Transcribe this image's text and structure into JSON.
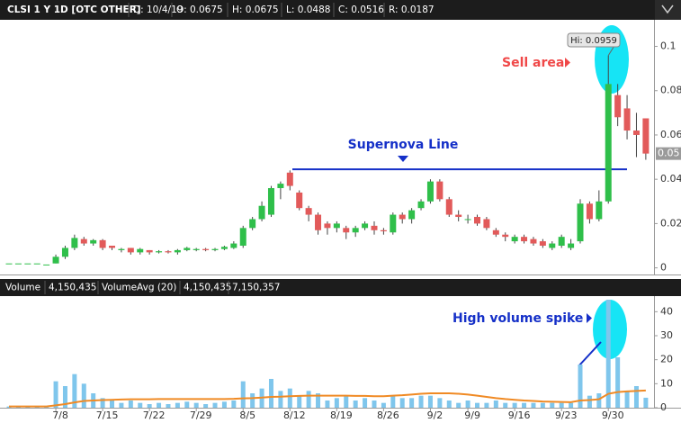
{
  "chart_data": [
    {
      "type": "candlestick",
      "header": [
        "CLSI 1 Y 1D [OTC OTHER]",
        "D: 10/4/19",
        "O: 0.0675",
        "H: 0.0675",
        "L: 0.0488",
        "C: 0.0516",
        "R: 0.0187"
      ],
      "open": [
        0.002,
        0.002,
        0.002,
        0.002,
        0.0015,
        0.002,
        0.005,
        0.009,
        0.013,
        0.011,
        0.0125,
        0.01,
        0.008,
        0.009,
        0.007,
        0.008,
        0.007,
        0.0075,
        0.007,
        0.008,
        0.008,
        0.0085,
        0.008,
        0.0085,
        0.009,
        0.01,
        0.018,
        0.022,
        0.024,
        0.036,
        0.043,
        0.034,
        0.027,
        0.024,
        0.02,
        0.018,
        0.018,
        0.016,
        0.018,
        0.019,
        0.017,
        0.016,
        0.024,
        0.022,
        0.027,
        0.03,
        0.039,
        0.031,
        0.024,
        0.022,
        0.023,
        0.022,
        0.017,
        0.015,
        0.012,
        0.014,
        0.013,
        0.012,
        0.009,
        0.01,
        0.009,
        0.012,
        0.029,
        0.022,
        0.03,
        0.078,
        0.072,
        0.062,
        0.0675
      ],
      "high": [
        0.002,
        0.002,
        0.002,
        0.002,
        0.0015,
        0.006,
        0.01,
        0.015,
        0.014,
        0.013,
        0.013,
        0.01,
        0.009,
        0.009,
        0.009,
        0.008,
        0.008,
        0.008,
        0.0085,
        0.0095,
        0.009,
        0.009,
        0.009,
        0.01,
        0.012,
        0.019,
        0.023,
        0.03,
        0.037,
        0.039,
        0.044,
        0.035,
        0.028,
        0.025,
        0.021,
        0.021,
        0.019,
        0.019,
        0.021,
        0.021,
        0.018,
        0.025,
        0.025,
        0.027,
        0.031,
        0.04,
        0.04,
        0.032,
        0.026,
        0.024,
        0.024,
        0.023,
        0.018,
        0.016,
        0.015,
        0.015,
        0.014,
        0.013,
        0.012,
        0.015,
        0.013,
        0.031,
        0.03,
        0.035,
        0.0959,
        0.083,
        0.078,
        0.07,
        0.0675
      ],
      "low": [
        0.002,
        0.002,
        0.002,
        0.002,
        0.0015,
        0.002,
        0.004,
        0.008,
        0.01,
        0.01,
        0.008,
        0.008,
        0.007,
        0.006,
        0.006,
        0.006,
        0.0065,
        0.0065,
        0.006,
        0.0075,
        0.0075,
        0.0075,
        0.0075,
        0.008,
        0.0085,
        0.009,
        0.017,
        0.021,
        0.023,
        0.031,
        0.035,
        0.026,
        0.021,
        0.015,
        0.015,
        0.016,
        0.013,
        0.014,
        0.017,
        0.015,
        0.015,
        0.015,
        0.02,
        0.02,
        0.026,
        0.029,
        0.03,
        0.023,
        0.021,
        0.02,
        0.019,
        0.017,
        0.014,
        0.012,
        0.011,
        0.011,
        0.01,
        0.009,
        0.008,
        0.009,
        0.008,
        0.011,
        0.02,
        0.021,
        0.029,
        0.064,
        0.058,
        0.05,
        0.0488
      ],
      "close": [
        0.002,
        0.002,
        0.002,
        0.002,
        0.0015,
        0.005,
        0.009,
        0.0135,
        0.011,
        0.0125,
        0.009,
        0.009,
        0.0085,
        0.007,
        0.0085,
        0.007,
        0.0075,
        0.007,
        0.008,
        0.009,
        0.0085,
        0.008,
        0.0085,
        0.0095,
        0.011,
        0.018,
        0.022,
        0.028,
        0.036,
        0.038,
        0.037,
        0.027,
        0.024,
        0.017,
        0.018,
        0.02,
        0.016,
        0.018,
        0.02,
        0.017,
        0.0165,
        0.024,
        0.022,
        0.026,
        0.03,
        0.039,
        0.031,
        0.024,
        0.023,
        0.022,
        0.02,
        0.018,
        0.015,
        0.014,
        0.014,
        0.012,
        0.011,
        0.01,
        0.011,
        0.014,
        0.011,
        0.029,
        0.022,
        0.03,
        0.083,
        0.068,
        0.062,
        0.06,
        0.0516
      ],
      "up_color": "#2fbf4a",
      "down_color": "#e25a5a",
      "ylim": [
        -0.003,
        0.112
      ],
      "yticks": [
        0,
        0.02,
        0.04,
        0.06,
        0.08,
        0.1
      ],
      "high_label": "Hi: 0.0959",
      "last_price_label": "0.05",
      "supernova_level": 0.0445,
      "annotations": [
        "Sell area",
        "Supernova Line"
      ]
    },
    {
      "type": "bar",
      "header": [
        "Volume",
        "4,150,435",
        "VolumeAvg (20)",
        "4,150,435",
        "7,150,357"
      ],
      "categories": [
        null,
        null,
        null,
        null,
        null,
        "7/8",
        null,
        null,
        null,
        null,
        "7/15",
        null,
        null,
        null,
        null,
        "7/22",
        null,
        null,
        null,
        null,
        "7/29",
        null,
        null,
        null,
        null,
        "8/5",
        null,
        null,
        null,
        null,
        "8/12",
        null,
        null,
        null,
        null,
        "8/19",
        null,
        null,
        null,
        null,
        "8/26",
        null,
        null,
        null,
        null,
        "9/2",
        null,
        null,
        null,
        "9/9",
        null,
        null,
        null,
        null,
        "9/16",
        null,
        null,
        null,
        null,
        "9/23",
        null,
        null,
        null,
        null,
        "9/30",
        null,
        null,
        null,
        null
      ],
      "series": [
        {
          "name": "Volume",
          "color": "#7fc6ec",
          "values": [
            0.5,
            0.4,
            0.6,
            0.3,
            0.5,
            11,
            9,
            14,
            10,
            6,
            4,
            3,
            2,
            3,
            2,
            1.5,
            2,
            1.5,
            2,
            2.5,
            2,
            1.5,
            2,
            2.5,
            3,
            11,
            6,
            8,
            12,
            7,
            8,
            5,
            7,
            6,
            3,
            4,
            5,
            3,
            4,
            3,
            2,
            5,
            4,
            4,
            5,
            5,
            4,
            3,
            2,
            3,
            2,
            2,
            3,
            2,
            2,
            2,
            2,
            2,
            2,
            2,
            2,
            18,
            5,
            6,
            45,
            21,
            7,
            9,
            4.150435
          ]
        },
        {
          "name": "VolumeAvg (20)",
          "color": "#f08a24",
          "values": [
            0.5,
            0.5,
            0.5,
            0.5,
            0.5,
            1,
            1.5,
            2.2,
            2.8,
            3,
            3.2,
            3.3,
            3.4,
            3.5,
            3.5,
            3.5,
            3.6,
            3.6,
            3.6,
            3.6,
            3.6,
            3.6,
            3.6,
            3.6,
            3.7,
            3.9,
            4,
            4.2,
            4.5,
            4.6,
            4.8,
            4.9,
            5,
            5,
            5,
            5,
            5,
            4.9,
            4.9,
            4.8,
            4.8,
            5,
            5.2,
            5.5,
            5.8,
            6,
            6,
            6,
            5.8,
            5.5,
            5,
            4.5,
            4,
            3.6,
            3.3,
            3,
            2.8,
            2.6,
            2.5,
            2.4,
            2.3,
            3,
            3.2,
            3.5,
            5.8,
            6.5,
            6.8,
            7,
            7.150357
          ]
        }
      ],
      "ylim": [
        0,
        46.5
      ],
      "yticks": [
        0,
        10,
        20,
        30,
        40
      ],
      "annotations": [
        "High volume spike"
      ]
    }
  ]
}
